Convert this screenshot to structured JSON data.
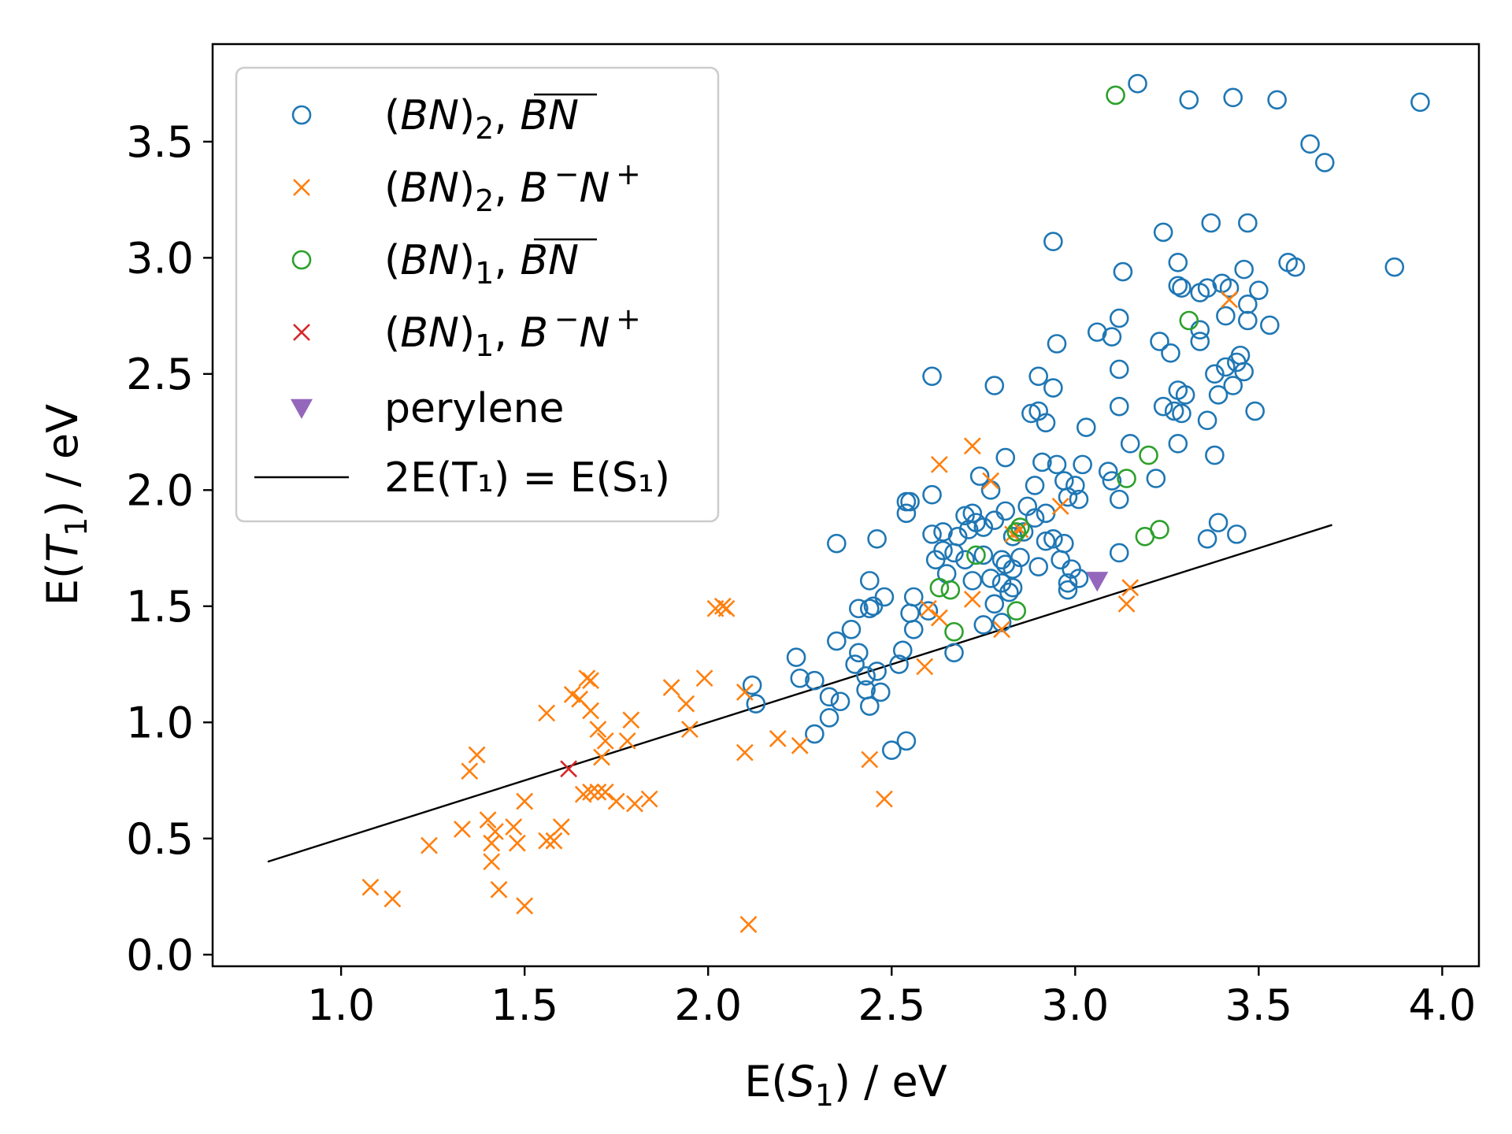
{
  "chart_data": {
    "type": "scatter",
    "xlabel": "E(S_1) / eV",
    "ylabel": "E(T_1) / eV",
    "xlim": [
      0.65,
      4.1
    ],
    "ylim": [
      -0.05,
      3.92
    ],
    "xticks": [
      "1.0",
      "1.5",
      "2.0",
      "2.5",
      "3.0",
      "3.5",
      "4.0"
    ],
    "yticks": [
      "0.0",
      "0.5",
      "1.0",
      "1.5",
      "2.0",
      "2.5",
      "3.0",
      "3.5"
    ],
    "grid": false,
    "legend_position": "upper-left",
    "series": [
      {
        "name": "(BN)_2, B̅N̅",
        "marker": "open-circle",
        "color": "#1f77b4",
        "points": [
          [
            3.17,
            3.75
          ],
          [
            3.31,
            3.68
          ],
          [
            3.43,
            3.69
          ],
          [
            3.55,
            3.68
          ],
          [
            3.94,
            3.67
          ],
          [
            3.64,
            3.49
          ],
          [
            3.68,
            3.41
          ],
          [
            2.94,
            3.07
          ],
          [
            3.24,
            3.11
          ],
          [
            3.37,
            3.15
          ],
          [
            3.47,
            3.15
          ],
          [
            3.28,
            2.98
          ],
          [
            3.13,
            2.94
          ],
          [
            3.46,
            2.95
          ],
          [
            3.58,
            2.98
          ],
          [
            3.6,
            2.96
          ],
          [
            3.87,
            2.96
          ],
          [
            3.28,
            2.88
          ],
          [
            3.29,
            2.87
          ],
          [
            3.34,
            2.85
          ],
          [
            3.36,
            2.87
          ],
          [
            3.4,
            2.89
          ],
          [
            3.42,
            2.87
          ],
          [
            3.5,
            2.86
          ],
          [
            3.47,
            2.8
          ],
          [
            3.12,
            2.74
          ],
          [
            3.41,
            2.75
          ],
          [
            3.47,
            2.73
          ],
          [
            3.53,
            2.71
          ],
          [
            3.06,
            2.68
          ],
          [
            3.1,
            2.66
          ],
          [
            3.34,
            2.69
          ],
          [
            2.95,
            2.63
          ],
          [
            3.23,
            2.64
          ],
          [
            3.26,
            2.59
          ],
          [
            3.34,
            2.64
          ],
          [
            2.61,
            2.49
          ],
          [
            2.9,
            2.49
          ],
          [
            3.12,
            2.52
          ],
          [
            3.45,
            2.58
          ],
          [
            3.38,
            2.5
          ],
          [
            3.41,
            2.53
          ],
          [
            3.44,
            2.55
          ],
          [
            3.46,
            2.51
          ],
          [
            2.78,
            2.45
          ],
          [
            2.94,
            2.44
          ],
          [
            3.28,
            2.43
          ],
          [
            3.3,
            2.41
          ],
          [
            3.39,
            2.41
          ],
          [
            3.43,
            2.45
          ],
          [
            3.12,
            2.36
          ],
          [
            3.24,
            2.36
          ],
          [
            3.27,
            2.34
          ],
          [
            3.29,
            2.33
          ],
          [
            2.88,
            2.33
          ],
          [
            2.9,
            2.34
          ],
          [
            2.92,
            2.29
          ],
          [
            3.03,
            2.27
          ],
          [
            3.36,
            2.3
          ],
          [
            3.49,
            2.34
          ],
          [
            2.81,
            2.14
          ],
          [
            3.02,
            2.11
          ],
          [
            3.15,
            2.2
          ],
          [
            3.28,
            2.2
          ],
          [
            3.38,
            2.15
          ],
          [
            2.74,
            2.06
          ],
          [
            2.91,
            2.12
          ],
          [
            2.95,
            2.11
          ],
          [
            3.09,
            2.08
          ],
          [
            3.22,
            2.05
          ],
          [
            2.54,
            1.95
          ],
          [
            2.55,
            1.95
          ],
          [
            2.61,
            1.98
          ],
          [
            2.77,
            2.0
          ],
          [
            2.89,
            2.02
          ],
          [
            2.97,
            2.04
          ],
          [
            3.0,
            2.02
          ],
          [
            3.1,
            2.04
          ],
          [
            3.12,
            1.96
          ],
          [
            2.54,
            1.9
          ],
          [
            2.7,
            1.89
          ],
          [
            2.72,
            1.9
          ],
          [
            2.81,
            1.91
          ],
          [
            2.87,
            1.93
          ],
          [
            2.89,
            1.88
          ],
          [
            2.92,
            1.9
          ],
          [
            2.98,
            1.97
          ],
          [
            3.01,
            1.96
          ],
          [
            2.35,
            1.77
          ],
          [
            2.46,
            1.79
          ],
          [
            2.61,
            1.81
          ],
          [
            2.64,
            1.82
          ],
          [
            2.68,
            1.8
          ],
          [
            2.71,
            1.83
          ],
          [
            2.73,
            1.86
          ],
          [
            2.75,
            1.84
          ],
          [
            2.78,
            1.87
          ],
          [
            2.83,
            1.8
          ],
          [
            2.86,
            1.82
          ],
          [
            2.92,
            1.78
          ],
          [
            2.94,
            1.79
          ],
          [
            2.97,
            1.77
          ],
          [
            3.12,
            1.73
          ],
          [
            3.36,
            1.79
          ],
          [
            3.39,
            1.86
          ],
          [
            3.44,
            1.81
          ],
          [
            2.62,
            1.7
          ],
          [
            2.64,
            1.74
          ],
          [
            2.67,
            1.73
          ],
          [
            2.7,
            1.7
          ],
          [
            2.75,
            1.72
          ],
          [
            2.8,
            1.7
          ],
          [
            2.81,
            1.68
          ],
          [
            2.83,
            1.66
          ],
          [
            2.85,
            1.71
          ],
          [
            2.9,
            1.67
          ],
          [
            2.96,
            1.7
          ],
          [
            2.99,
            1.66
          ],
          [
            3.01,
            1.62
          ],
          [
            2.44,
            1.61
          ],
          [
            2.65,
            1.64
          ],
          [
            2.72,
            1.61
          ],
          [
            2.77,
            1.62
          ],
          [
            2.8,
            1.6
          ],
          [
            2.83,
            1.58
          ],
          [
            2.98,
            1.6
          ],
          [
            2.98,
            1.57
          ],
          [
            2.45,
            1.5
          ],
          [
            2.56,
            1.54
          ],
          [
            2.6,
            1.48
          ],
          [
            2.78,
            1.51
          ],
          [
            2.82,
            1.56
          ],
          [
            2.41,
            1.49
          ],
          [
            2.44,
            1.49
          ],
          [
            2.48,
            1.54
          ],
          [
            2.55,
            1.47
          ],
          [
            2.56,
            1.4
          ],
          [
            2.39,
            1.4
          ],
          [
            2.35,
            1.35
          ],
          [
            2.41,
            1.3
          ],
          [
            2.53,
            1.31
          ],
          [
            2.67,
            1.3
          ],
          [
            2.75,
            1.42
          ],
          [
            2.8,
            1.43
          ],
          [
            2.24,
            1.28
          ],
          [
            2.25,
            1.19
          ],
          [
            2.29,
            1.18
          ],
          [
            2.4,
            1.25
          ],
          [
            2.43,
            1.2
          ],
          [
            2.46,
            1.22
          ],
          [
            2.52,
            1.25
          ],
          [
            2.12,
            1.16
          ],
          [
            2.13,
            1.08
          ],
          [
            2.33,
            1.11
          ],
          [
            2.36,
            1.09
          ],
          [
            2.43,
            1.14
          ],
          [
            2.44,
            1.07
          ],
          [
            2.47,
            1.13
          ],
          [
            2.33,
            1.02
          ],
          [
            2.29,
            0.95
          ],
          [
            2.5,
            0.88
          ],
          [
            2.54,
            0.92
          ]
        ]
      },
      {
        "name": "(BN)_2, B⁻N⁺",
        "marker": "x",
        "color": "#ff7f0e",
        "points": [
          [
            3.42,
            2.82
          ],
          [
            2.72,
            2.19
          ],
          [
            2.63,
            2.11
          ],
          [
            2.77,
            2.04
          ],
          [
            2.96,
            1.93
          ],
          [
            2.83,
            1.81
          ],
          [
            2.85,
            1.83
          ],
          [
            2.6,
            1.49
          ],
          [
            2.63,
            1.45
          ],
          [
            2.72,
            1.53
          ],
          [
            2.8,
            1.4
          ],
          [
            3.15,
            1.58
          ],
          [
            3.14,
            1.51
          ],
          [
            2.59,
            1.24
          ],
          [
            2.02,
            1.49
          ],
          [
            2.04,
            1.5
          ],
          [
            2.05,
            1.49
          ],
          [
            2.1,
            1.13
          ],
          [
            1.99,
            1.19
          ],
          [
            1.9,
            1.15
          ],
          [
            1.94,
            1.08
          ],
          [
            1.95,
            0.97
          ],
          [
            1.67,
            1.19
          ],
          [
            1.68,
            1.18
          ],
          [
            1.63,
            1.12
          ],
          [
            1.65,
            1.1
          ],
          [
            1.68,
            1.05
          ],
          [
            1.56,
            1.04
          ],
          [
            1.7,
            0.97
          ],
          [
            1.72,
            0.92
          ],
          [
            1.71,
            0.85
          ],
          [
            1.79,
            1.01
          ],
          [
            1.78,
            0.92
          ],
          [
            1.66,
            0.69
          ],
          [
            1.68,
            0.7
          ],
          [
            1.7,
            0.7
          ],
          [
            1.72,
            0.7
          ],
          [
            1.75,
            0.66
          ],
          [
            1.8,
            0.65
          ],
          [
            1.84,
            0.67
          ],
          [
            2.1,
            0.87
          ],
          [
            2.19,
            0.93
          ],
          [
            2.25,
            0.9
          ],
          [
            2.44,
            0.84
          ],
          [
            2.48,
            0.67
          ],
          [
            1.37,
            0.86
          ],
          [
            1.35,
            0.79
          ],
          [
            1.4,
            0.58
          ],
          [
            1.42,
            0.53
          ],
          [
            1.41,
            0.48
          ],
          [
            1.41,
            0.4
          ],
          [
            1.43,
            0.28
          ],
          [
            1.33,
            0.54
          ],
          [
            1.24,
            0.47
          ],
          [
            1.47,
            0.55
          ],
          [
            1.48,
            0.48
          ],
          [
            1.5,
            0.66
          ],
          [
            1.56,
            0.49
          ],
          [
            1.58,
            0.49
          ],
          [
            1.6,
            0.55
          ],
          [
            1.08,
            0.29
          ],
          [
            1.14,
            0.24
          ],
          [
            1.5,
            0.21
          ],
          [
            2.11,
            0.13
          ]
        ]
      },
      {
        "name": "(BN)_1, B̅N̅",
        "marker": "open-circle",
        "color": "#2ca02c",
        "points": [
          [
            3.11,
            3.7
          ],
          [
            3.31,
            2.73
          ],
          [
            3.2,
            2.15
          ],
          [
            3.14,
            2.05
          ],
          [
            2.85,
            1.84
          ],
          [
            2.84,
            1.82
          ],
          [
            2.73,
            1.72
          ],
          [
            3.19,
            1.8
          ],
          [
            3.23,
            1.83
          ],
          [
            2.63,
            1.58
          ],
          [
            2.66,
            1.57
          ],
          [
            2.84,
            1.48
          ],
          [
            2.67,
            1.39
          ]
        ]
      },
      {
        "name": "(BN)_1, B⁻N⁺",
        "marker": "x",
        "color": "#d62728",
        "points": [
          [
            1.62,
            0.8
          ]
        ]
      },
      {
        "name": "perylene",
        "marker": "triangle-down",
        "color": "#9467bd",
        "points": [
          [
            3.06,
            1.61
          ]
        ]
      }
    ],
    "line": {
      "name": "2E(T_1) = E(S_1)",
      "color": "#000000",
      "x": [
        0.8,
        3.7
      ],
      "y": [
        0.4,
        1.85
      ]
    },
    "legend": [
      {
        "series": 0,
        "parts": [
          "(",
          "BN",
          ")",
          "2",
          ", ",
          "B",
          "N"
        ],
        "overbar": true
      },
      {
        "series": 1,
        "parts": [
          "(",
          "BN",
          ")",
          "2",
          ", ",
          "B",
          "N"
        ],
        "charges": true
      },
      {
        "series": 2,
        "parts": [
          "(",
          "BN",
          ")",
          "1",
          ", ",
          "B",
          "N"
        ],
        "overbar": true
      },
      {
        "series": 3,
        "parts": [
          "(",
          "BN",
          ")",
          "1",
          ", ",
          "B",
          "N"
        ],
        "charges": true
      },
      {
        "series": 4,
        "text": "perylene"
      },
      {
        "line": true,
        "text": "2E(T₁) = E(S₁)"
      }
    ]
  }
}
